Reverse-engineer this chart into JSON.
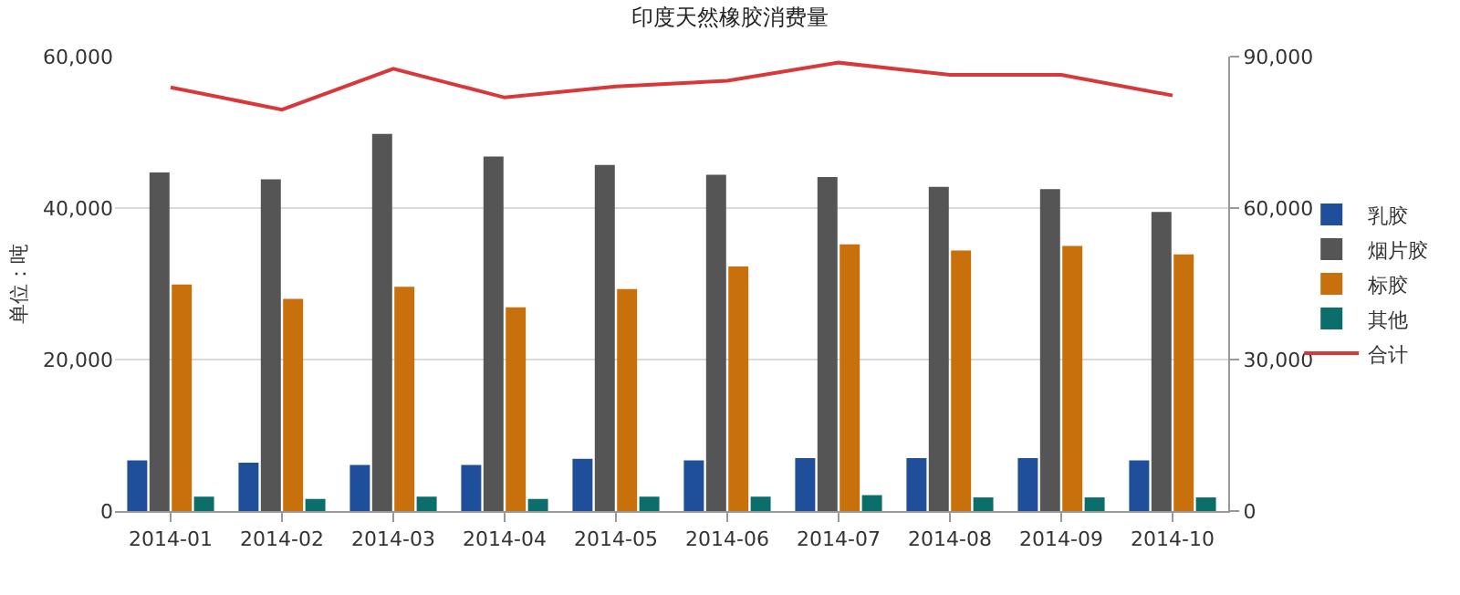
{
  "chart_data": {
    "type": "bar",
    "title": "印度天然橡胶消费量",
    "ylabel": "单位：吨",
    "categories": [
      "2014-01",
      "2014-02",
      "2014-03",
      "2014-04",
      "2014-05",
      "2014-06",
      "2014-07",
      "2014-08",
      "2014-09",
      "2014-10"
    ],
    "series": [
      {
        "name": "乳胶",
        "color": "#1f4e9a",
        "values": [
          6700,
          6400,
          6100,
          6100,
          6900,
          6700,
          7000,
          7000,
          7000,
          6700
        ]
      },
      {
        "name": "烟片胶",
        "color": "#555555",
        "values": [
          44700,
          43800,
          49800,
          46800,
          45700,
          44400,
          44100,
          42800,
          42500,
          39500
        ]
      },
      {
        "name": "标胶",
        "color": "#c8700c",
        "values": [
          29900,
          28000,
          29600,
          26900,
          29300,
          32300,
          35200,
          34400,
          35000,
          33900
        ]
      },
      {
        "name": "其他",
        "color": "#0b6e6a",
        "values": [
          1900,
          1600,
          1900,
          1600,
          1900,
          1900,
          2100,
          1800,
          1800,
          1800
        ]
      },
      {
        "name": "合计",
        "type": "line",
        "axis": "y2",
        "color": "#d9383a",
        "values": [
          83900,
          79500,
          87600,
          81900,
          84100,
          85200,
          88800,
          86400,
          86400,
          82300
        ]
      }
    ],
    "ylim": [
      0,
      60000
    ],
    "yticks": [
      {
        "value": 0,
        "label": "0"
      },
      {
        "value": 20000,
        "label": "20,000"
      },
      {
        "value": 40000,
        "label": "40,000"
      },
      {
        "value": 60000,
        "label": "60,000"
      }
    ],
    "y2lim": [
      0,
      90000
    ],
    "y2ticks": [
      {
        "value": 0,
        "label": "0"
      },
      {
        "value": 30000,
        "label": "30,000"
      },
      {
        "value": 60000,
        "label": "60,000"
      },
      {
        "value": 90000,
        "label": "90,000"
      }
    ],
    "grid": "y",
    "legend": "right",
    "marker": "none",
    "line_style": "solid"
  }
}
